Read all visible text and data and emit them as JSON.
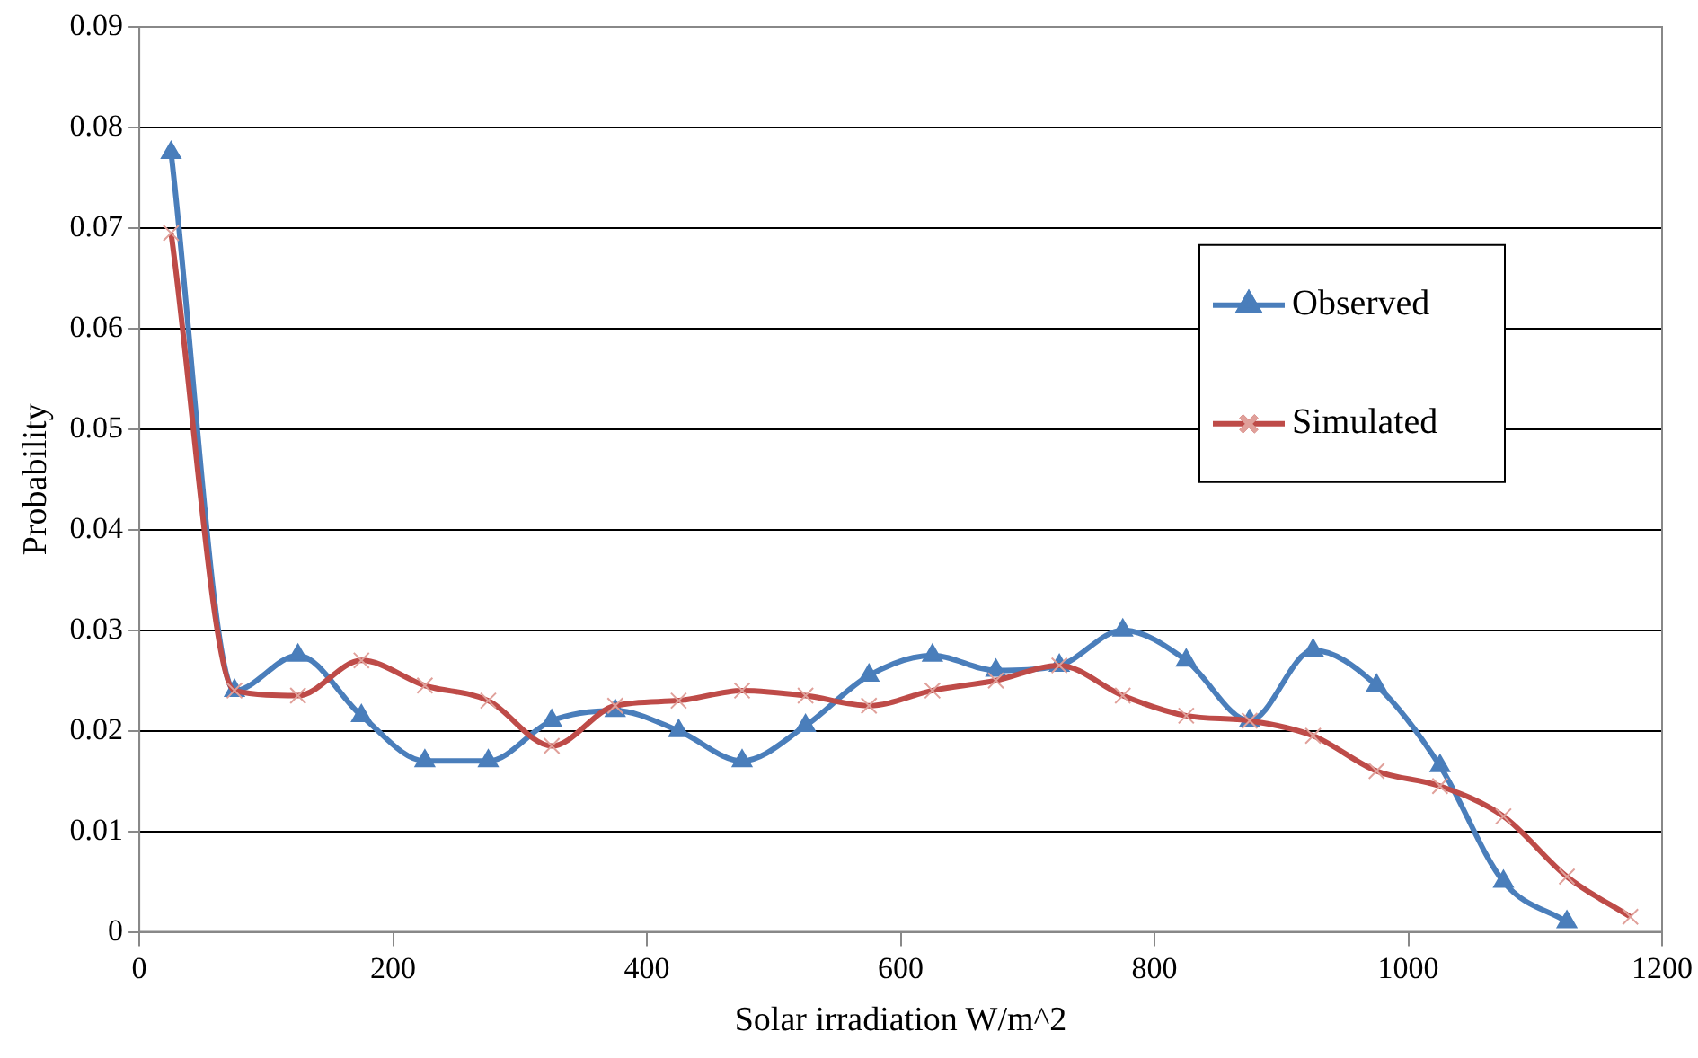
{
  "chart_data": {
    "type": "line",
    "xlabel": "Solar irradiation W/m^2",
    "ylabel": "Probability",
    "x": [
      25,
      75,
      125,
      175,
      225,
      275,
      325,
      375,
      425,
      475,
      525,
      575,
      625,
      675,
      725,
      775,
      825,
      875,
      925,
      975,
      1025,
      1075,
      1125,
      1175
    ],
    "series": [
      {
        "name": "Observed",
        "color": "#4a7ebb",
        "marker": "triangle",
        "values": [
          0.0775,
          0.024,
          0.0275,
          0.0215,
          0.017,
          0.017,
          0.021,
          0.022,
          0.02,
          0.017,
          0.0205,
          0.0255,
          0.0275,
          0.026,
          0.0265,
          0.03,
          0.027,
          0.021,
          0.028,
          0.0245,
          0.0165,
          0.005,
          0.001,
          null
        ]
      },
      {
        "name": "Simulated",
        "color": "#be4b48",
        "marker": "cross",
        "values": [
          0.0695,
          0.024,
          0.0235,
          0.027,
          0.0245,
          0.023,
          0.0185,
          0.0225,
          0.023,
          0.024,
          0.0235,
          0.0225,
          0.024,
          0.025,
          0.0265,
          0.0235,
          0.0215,
          0.021,
          0.0195,
          0.016,
          0.0145,
          0.0115,
          0.0055,
          0.0015
        ]
      }
    ],
    "xlim": [
      0,
      1200
    ],
    "xticks": [
      0,
      200,
      400,
      600,
      800,
      1000,
      1200
    ],
    "ylim": [
      0,
      0.09
    ],
    "yticks": [
      0,
      0.01,
      0.02,
      0.03,
      0.04,
      0.05,
      0.06,
      0.07,
      0.08,
      0.09
    ],
    "grid": "y",
    "legend": "right"
  }
}
